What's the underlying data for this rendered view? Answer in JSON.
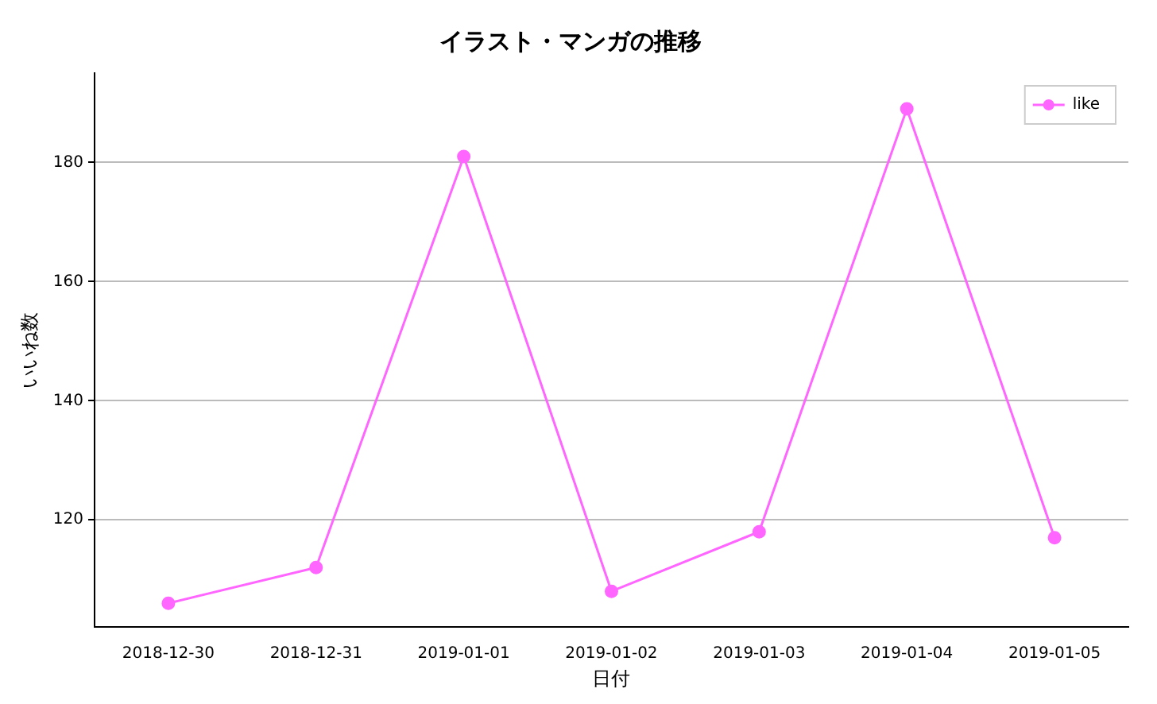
{
  "chart_data": {
    "type": "line",
    "title": "イラスト・マンガの推移",
    "xlabel": "日付",
    "ylabel": "いいね数",
    "categories": [
      "2018-12-30",
      "2018-12-31",
      "2019-01-01",
      "2019-01-02",
      "2019-01-03",
      "2019-01-04",
      "2019-01-05"
    ],
    "series": [
      {
        "name": "like",
        "color": "#ff66ff",
        "values": [
          106,
          112,
          181,
          108,
          118,
          189,
          117
        ]
      }
    ],
    "ylim": [
      102,
      195
    ],
    "yticks": [
      120,
      140,
      160,
      180
    ],
    "grid": "y",
    "legend": "top right",
    "marker": "circle",
    "line_style": "solid"
  }
}
